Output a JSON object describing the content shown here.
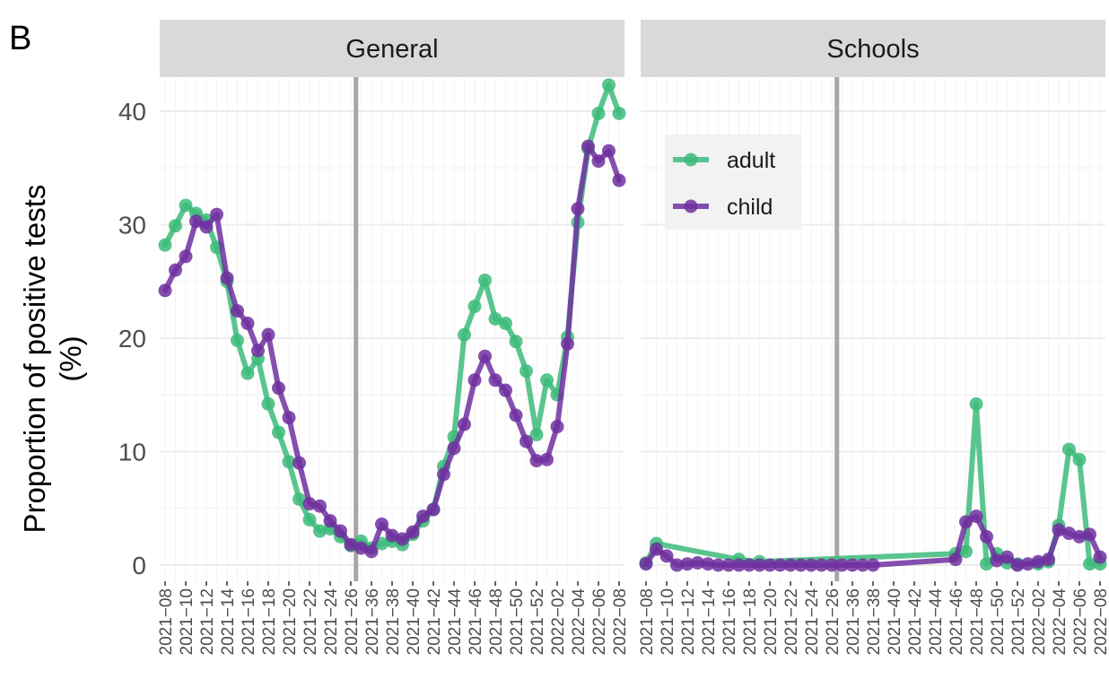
{
  "panel_tag": "B",
  "colors": {
    "adult": "#3dbb7a",
    "child": "#7030a0",
    "strip": "#d9d9d9",
    "grid": "#ebebeb",
    "vline": "#a6a6a6"
  },
  "chart_data": {
    "type": "line",
    "ylabel_line1": "Proportion of positive tests",
    "ylabel_line2": "(%)",
    "ylim": [
      0,
      43
    ],
    "yticks": [
      0,
      10,
      20,
      30,
      40
    ],
    "grid": true,
    "legend": {
      "position": "top-left (Schools panel)",
      "entries": [
        "adult",
        "child"
      ]
    },
    "panels": [
      {
        "name": "General",
        "x": [
          "2021-08",
          "2021-09",
          "2021-10",
          "2021-11",
          "2021-12",
          "2021-13",
          "2021-14",
          "2021-15",
          "2021-16",
          "2021-17",
          "2021-18",
          "2021-19",
          "2021-20",
          "2021-21",
          "2021-22",
          "2021-23",
          "2021-24",
          "2021-25",
          "2021-26",
          "2021-35",
          "2021-36",
          "2021-37",
          "2021-38",
          "2021-39",
          "2021-40",
          "2021-41",
          "2021-42",
          "2021-43",
          "2021-44",
          "2021-45",
          "2021-46",
          "2021-47",
          "2021-48",
          "2021-49",
          "2021-50",
          "2021-51",
          "2021-52",
          "2022-01",
          "2022-02",
          "2022-03",
          "2022-04",
          "2022-05",
          "2022-06",
          "2022-07",
          "2022-08"
        ],
        "xticks": [
          "2021−08",
          "2021−10",
          "2021−12",
          "2021−14",
          "2021−16",
          "2021−18",
          "2021−20",
          "2021−22",
          "2021−24",
          "2021−26",
          "2021−36",
          "2021−38",
          "2021−40",
          "2021−42",
          "2021−44",
          "2021−46",
          "2021−48",
          "2021−50",
          "2021−52",
          "2022−02",
          "2022−04",
          "2022−06",
          "2022−08"
        ],
        "vline_after": "2021-26",
        "series": [
          {
            "name": "adult",
            "values": [
              28.2,
              29.9,
              31.7,
              31.0,
              30.4,
              28.0,
              25.0,
              19.8,
              16.9,
              18.2,
              14.2,
              11.7,
              9.1,
              5.8,
              4.0,
              3.0,
              3.2,
              2.5,
              1.7,
              2.1,
              1.5,
              1.9,
              2.1,
              1.8,
              2.7,
              3.9,
              4.9,
              8.7,
              11.3,
              20.3,
              22.8,
              25.1,
              21.7,
              21.3,
              19.7,
              17.1,
              11.5,
              16.3,
              15.0,
              20.1,
              30.2,
              36.7,
              39.8,
              42.3,
              39.8
            ]
          },
          {
            "name": "child",
            "values": [
              24.2,
              26.0,
              27.2,
              30.3,
              29.8,
              30.9,
              25.3,
              22.4,
              21.3,
              18.9,
              20.3,
              15.6,
              13.0,
              9.0,
              5.4,
              5.2,
              3.9,
              3.0,
              1.8,
              1.5,
              1.2,
              3.6,
              2.6,
              2.3,
              2.9,
              4.3,
              4.9,
              8.0,
              10.3,
              12.4,
              16.3,
              18.4,
              16.3,
              15.4,
              13.2,
              10.9,
              9.2,
              9.3,
              12.2,
              19.5,
              31.4,
              36.9,
              35.6,
              36.5,
              33.9
            ]
          }
        ]
      },
      {
        "name": "Schools",
        "x": [
          "2021-08",
          "2021-09",
          "2021-10",
          "2021-11",
          "2021-12",
          "2021-13",
          "2021-14",
          "2021-15",
          "2021-16",
          "2021-17",
          "2021-18",
          "2021-19",
          "2021-20",
          "2021-21",
          "2021-22",
          "2021-23",
          "2021-24",
          "2021-25",
          "2021-26",
          "2021-35",
          "2021-36",
          "2021-37",
          "2021-38",
          "2021-39",
          "2021-40",
          "2021-41",
          "2021-42",
          "2021-43",
          "2021-44",
          "2021-45",
          "2021-46",
          "2021-47",
          "2021-48",
          "2021-49",
          "2021-50",
          "2021-51",
          "2021-52",
          "2022-01",
          "2022-02",
          "2022-03",
          "2022-04",
          "2022-05",
          "2022-06",
          "2022-07",
          "2022-08"
        ],
        "xticks": [
          "2021−08",
          "2021−10",
          "2021−12",
          "2021−14",
          "2021−16",
          "2021−18",
          "2021−20",
          "2021−22",
          "2021−24",
          "2021−26",
          "2021−36",
          "2021−38",
          "2021−40",
          "2021−42",
          "2021−44",
          "2021−46",
          "2021−48",
          "2021−50",
          "2021−52",
          "2022−02",
          "2022−04",
          "2022−06",
          "2022−08"
        ],
        "vline_after": "2021-26",
        "series": [
          {
            "name": "adult",
            "values": [
              0.2,
              1.9,
              null,
              null,
              null,
              null,
              null,
              null,
              null,
              0.5,
              null,
              0.3,
              null,
              null,
              null,
              null,
              null,
              null,
              null,
              null,
              null,
              null,
              null,
              null,
              null,
              null,
              null,
              null,
              null,
              null,
              1.0,
              1.2,
              14.2,
              0.1,
              1.0,
              0.2,
              0.1,
              null,
              0.1,
              0.3,
              3.5,
              10.2,
              9.3,
              0.1,
              0.1
            ]
          },
          {
            "name": "child",
            "values": [
              0.1,
              1.4,
              0.8,
              0.0,
              0.1,
              0.2,
              0.1,
              0.0,
              0.0,
              0.0,
              0.0,
              0.0,
              0.0,
              0.0,
              0.0,
              0.0,
              0.0,
              0.0,
              0.0,
              0.0,
              0.0,
              0.0,
              0.0,
              null,
              null,
              null,
              null,
              null,
              null,
              null,
              0.5,
              3.8,
              4.3,
              2.5,
              0.4,
              0.7,
              0.0,
              0.1,
              0.3,
              0.5,
              3.1,
              2.8,
              2.5,
              2.7,
              0.7
            ]
          }
        ]
      }
    ]
  }
}
